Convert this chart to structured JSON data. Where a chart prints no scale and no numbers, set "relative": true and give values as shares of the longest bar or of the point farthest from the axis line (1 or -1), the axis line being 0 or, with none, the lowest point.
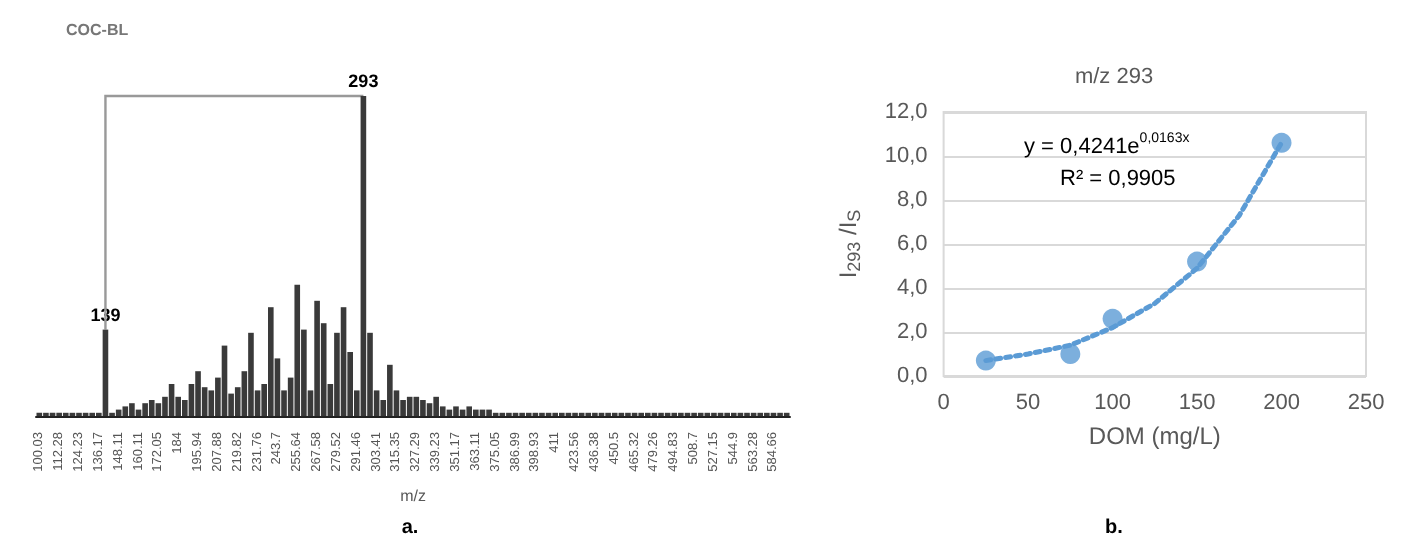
{
  "chart_data": [
    {
      "type": "bar",
      "title": "COC-BL",
      "xlabel": "m/z",
      "relative": true,
      "tick_labels": "x",
      "annotations": [
        "a.",
        {
          "text": "139",
          "y": 0.27
        },
        {
          "text": "293",
          "y": 1
        }
      ],
      "categories": [
        "100.03",
        null,
        null,
        "112.28",
        null,
        null,
        "124.23",
        null,
        null,
        "136.17",
        null,
        null,
        "148.11",
        null,
        null,
        "160.11",
        null,
        null,
        "172.05",
        null,
        null,
        "184",
        null,
        null,
        "195.94",
        null,
        null,
        "207.88",
        null,
        null,
        "219.82",
        null,
        null,
        "231.76",
        null,
        null,
        "243.7",
        null,
        null,
        "255.64",
        null,
        null,
        "267.58",
        null,
        null,
        "279.52",
        null,
        null,
        "291.46",
        null,
        null,
        "303.41",
        null,
        null,
        "315.35",
        null,
        null,
        "327.29",
        null,
        null,
        "339.23",
        null,
        null,
        "351.17",
        null,
        null,
        "363.11",
        null,
        null,
        "375.05",
        null,
        null,
        "386.99",
        null,
        null,
        "398.93",
        null,
        null,
        "411",
        null,
        null,
        "423.56",
        null,
        null,
        "436.38",
        null,
        null,
        "450.5",
        null,
        null,
        "465.32",
        null,
        null,
        "479.26",
        null,
        null,
        "494.83",
        null,
        null,
        "508.7",
        null,
        null,
        "527.15",
        null,
        null,
        "544.9",
        null,
        null,
        "563.28",
        null,
        null,
        "584.66",
        null,
        null
      ],
      "series": [
        {
          "color": "#3a3a3a",
          "values": [
            0.01,
            0.01,
            0.01,
            0.01,
            0.01,
            0.01,
            0.01,
            0.01,
            0.01,
            0.01,
            0.27,
            0.01,
            0.02,
            0.03,
            0.04,
            0.02,
            0.04,
            0.05,
            0.04,
            0.06,
            0.1,
            0.06,
            0.05,
            0.1,
            0.14,
            0.09,
            0.08,
            0.12,
            0.22,
            0.07,
            0.09,
            0.14,
            0.26,
            0.08,
            0.1,
            0.34,
            0.18,
            0.08,
            0.12,
            0.41,
            0.27,
            0.08,
            0.36,
            0.29,
            0.1,
            0.26,
            0.34,
            0.2,
            0.08,
            1,
            0.26,
            0.08,
            0.05,
            0.16,
            0.08,
            0.05,
            0.06,
            0.06,
            0.05,
            0.04,
            0.06,
            0.03,
            0.02,
            0.03,
            0.02,
            0.03,
            0.02,
            0.02,
            0.02,
            0.01,
            0.01,
            0.01,
            0.01,
            0.01,
            0.01,
            0.01,
            0.01,
            0.01,
            0.01,
            0.01,
            0.01,
            0.01,
            0.01,
            0.01,
            0.01,
            0.01,
            0.01,
            0.01,
            0.01,
            0.01,
            0.01,
            0.01,
            0.01,
            0.01,
            0.01,
            0.01,
            0.01,
            0.01,
            0.01,
            0.01,
            0.01,
            0.01,
            0.01,
            0.01,
            0.01,
            0.01,
            0.01,
            0.01,
            0.01,
            0.01,
            0.01,
            0.01,
            0.01,
            0.01
          ]
        }
      ]
    },
    {
      "type": "scatter",
      "title": "m/z 293",
      "xlabel": "DOM (mg/L)",
      "ylabel": "I$_{293}$ /I$_{S}$",
      "annotations": [
        "y = 0,4241e$^{0,0163x}$",
        "R² = 0,9905",
        "b."
      ],
      "xlim": [
        0,
        250
      ],
      "xticks": [
        0,
        50,
        100,
        150,
        200,
        250
      ],
      "ylim": [
        0,
        12
      ],
      "yticks": [
        {
          "value": 0,
          "label": "0,0"
        },
        {
          "value": 2,
          "label": "2,0"
        },
        {
          "value": 4,
          "label": "4,0"
        },
        {
          "value": 6,
          "label": "6,0"
        },
        {
          "value": 8,
          "label": "8,0"
        },
        {
          "value": 10,
          "label": "10,0"
        },
        {
          "value": 12,
          "label": "12,0"
        }
      ],
      "grid": "y",
      "marker": "circle",
      "series": [
        {
          "type": "scatter",
          "color": "#5b9bd5",
          "x": [
            25,
            75,
            100,
            150,
            200
          ],
          "values": [
            0.7,
            1.0,
            2.6,
            5.2,
            10.6
          ]
        },
        {
          "type": "line",
          "color": "#5b9bd5",
          "line_style": "dotted",
          "marker": "none",
          "x": [
            25,
            50,
            75,
            100,
            125,
            150,
            175,
            200
          ],
          "values": [
            0.7,
            1.0,
            1.4,
            2.2,
            3.3,
            4.9,
            7.3,
            10.6
          ]
        }
      ]
    }
  ]
}
